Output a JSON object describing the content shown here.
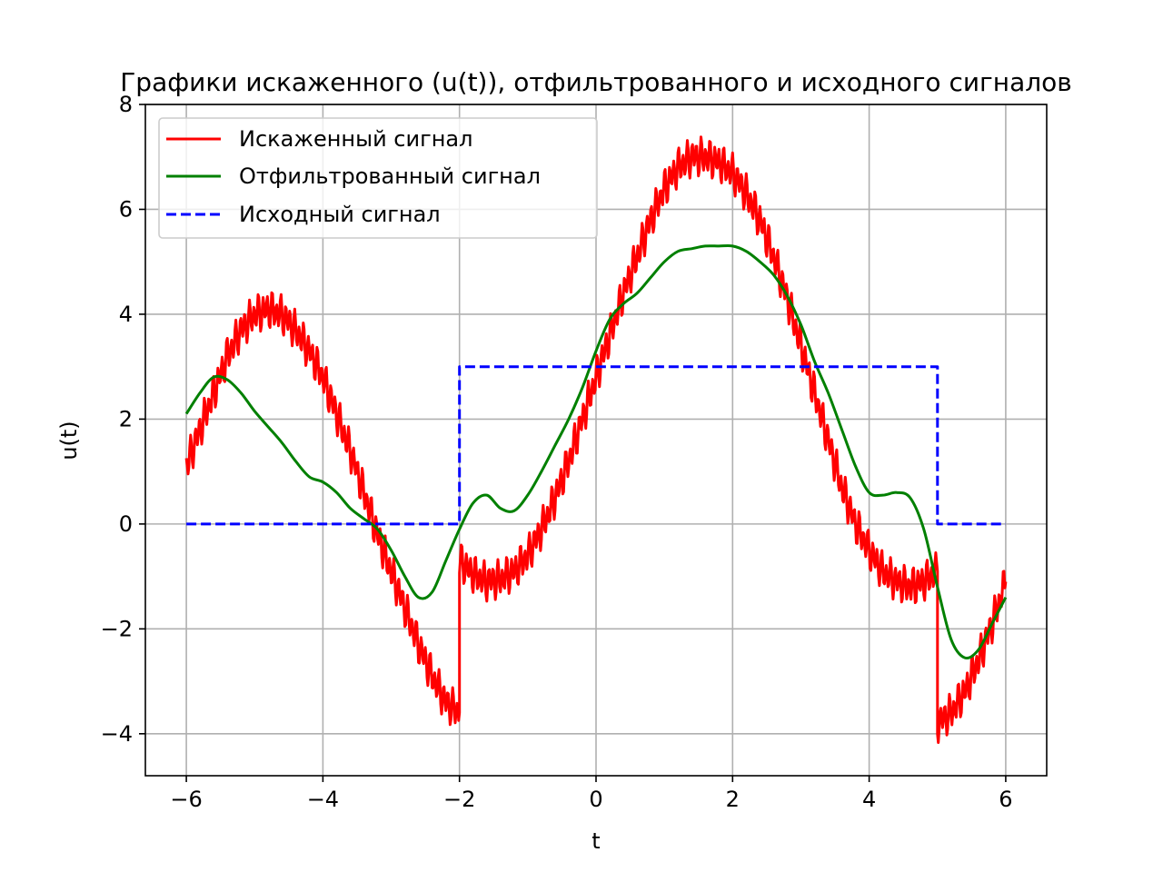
{
  "chart_data": {
    "type": "line",
    "title": "Графики искаженного (u(t)), отфильтрованного и исходного сигналов",
    "xlabel": "t",
    "ylabel": "u(t)",
    "xlim": [
      -6.6,
      6.6
    ],
    "ylim": [
      -4.8,
      8.0
    ],
    "xticks": [
      -6,
      -4,
      -2,
      0,
      2,
      4,
      6
    ],
    "xtick_labels": [
      "−6",
      "−4",
      "−2",
      "0",
      "2",
      "4",
      "6"
    ],
    "yticks": [
      -4,
      -2,
      0,
      2,
      4,
      6,
      8
    ],
    "ytick_labels": [
      "−4",
      "−2",
      "0",
      "2",
      "4",
      "6",
      "8"
    ],
    "grid": true,
    "legend_position": "top-left",
    "series": [
      {
        "name": "Искаженный сигнал",
        "color": "#ff0000",
        "style": "solid",
        "x": [
          -6.0,
          -5.8,
          -5.6,
          -5.4,
          -5.2,
          -5.0,
          -4.8,
          -4.6,
          -4.4,
          -4.2,
          -4.0,
          -3.8,
          -3.6,
          -3.4,
          -3.2,
          -3.0,
          -2.8,
          -2.6,
          -2.4,
          -2.2,
          -2.0,
          -2.0,
          -1.8,
          -1.6,
          -1.4,
          -1.2,
          -1.0,
          -0.8,
          -0.6,
          -0.4,
          -0.2,
          0.0,
          0.2,
          0.4,
          0.6,
          0.8,
          1.0,
          1.2,
          1.4,
          1.6,
          1.8,
          2.0,
          2.2,
          2.4,
          2.6,
          2.8,
          3.0,
          3.2,
          3.4,
          3.6,
          3.8,
          4.0,
          4.2,
          4.4,
          4.6,
          4.8,
          5.0,
          5.0,
          5.2,
          5.4,
          5.6,
          5.8,
          6.0
        ],
        "y": [
          1.1,
          1.8,
          2.5,
          3.2,
          3.7,
          4.0,
          4.1,
          4.0,
          3.7,
          3.3,
          2.8,
          2.1,
          1.4,
          0.6,
          -0.2,
          -0.9,
          -1.6,
          -2.3,
          -2.9,
          -3.4,
          -3.6,
          -0.7,
          -0.95,
          -1.1,
          -1.05,
          -0.9,
          -0.6,
          -0.1,
          0.5,
          1.2,
          2.0,
          2.8,
          3.6,
          4.4,
          5.1,
          5.8,
          6.4,
          6.8,
          7.0,
          7.0,
          6.9,
          6.7,
          6.3,
          5.8,
          5.1,
          4.3,
          3.4,
          2.5,
          1.6,
          0.7,
          0.0,
          -0.5,
          -0.9,
          -1.1,
          -1.2,
          -1.1,
          -0.9,
          -3.8,
          -3.6,
          -3.2,
          -2.6,
          -1.9,
          -1.1
        ]
      },
      {
        "name": "Отфильтрованный сигнал",
        "color": "#008000",
        "style": "solid",
        "x": [
          -6.0,
          -5.8,
          -5.6,
          -5.4,
          -5.2,
          -5.0,
          -4.8,
          -4.6,
          -4.4,
          -4.2,
          -4.0,
          -3.8,
          -3.6,
          -3.4,
          -3.2,
          -3.0,
          -2.8,
          -2.6,
          -2.4,
          -2.2,
          -2.0,
          -1.8,
          -1.6,
          -1.4,
          -1.2,
          -1.0,
          -0.8,
          -0.6,
          -0.4,
          -0.2,
          0.0,
          0.2,
          0.4,
          0.6,
          0.8,
          1.0,
          1.2,
          1.4,
          1.6,
          1.8,
          2.0,
          2.2,
          2.4,
          2.6,
          2.8,
          3.0,
          3.2,
          3.4,
          3.6,
          3.8,
          4.0,
          4.2,
          4.4,
          4.6,
          4.8,
          5.0,
          5.2,
          5.4,
          5.6,
          5.8,
          6.0
        ],
        "y": [
          2.1,
          2.5,
          2.8,
          2.75,
          2.5,
          2.15,
          1.85,
          1.55,
          1.2,
          0.9,
          0.8,
          0.6,
          0.3,
          0.1,
          -0.1,
          -0.5,
          -1.0,
          -1.4,
          -1.3,
          -0.7,
          -0.1,
          0.4,
          0.55,
          0.3,
          0.25,
          0.55,
          1.0,
          1.5,
          2.0,
          2.6,
          3.3,
          3.9,
          4.2,
          4.4,
          4.7,
          5.0,
          5.2,
          5.25,
          5.3,
          5.3,
          5.3,
          5.2,
          5.0,
          4.75,
          4.35,
          3.8,
          3.1,
          2.5,
          1.8,
          1.1,
          0.6,
          0.55,
          0.6,
          0.5,
          -0.1,
          -1.2,
          -2.2,
          -2.55,
          -2.4,
          -1.9,
          -1.4
        ]
      },
      {
        "name": "Исходный сигнал",
        "color": "#0000ff",
        "style": "dashed",
        "x": [
          -6.0,
          -2.0,
          -2.0,
          5.0,
          5.0,
          6.0
        ],
        "y": [
          0,
          0,
          3,
          3,
          0,
          0
        ]
      }
    ]
  }
}
